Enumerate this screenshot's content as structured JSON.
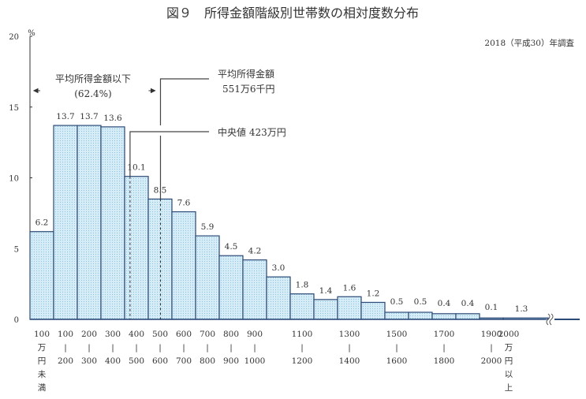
{
  "chart_data": {
    "type": "bar",
    "title": "図９　所得金額階級別世帯数の相対度数分布",
    "subtitle": "2018（平成30）年調査",
    "ylabel": "%",
    "ylim": [
      0,
      20
    ],
    "yticks": [
      0,
      5,
      10,
      15,
      20
    ],
    "grid": false,
    "colors": {
      "bar_fill": "#d6edf8",
      "bar_stroke": "#2c4a78",
      "dots": "#8fc3dd",
      "text": "#333333"
    },
    "categories": [
      "100万円未満",
      "100-200",
      "200-300",
      "300-400",
      "400-500",
      "500-600",
      "600-700",
      "700-800",
      "800-900",
      "900-1000",
      "1000-1100",
      "1100-1200",
      "1200-1300",
      "1300-1400",
      "1400-1500",
      "1500-1600",
      "1600-1700",
      "1700-1800",
      "1800-1900",
      "1900-2000",
      "2000万円以上"
    ],
    "values": [
      6.2,
      13.7,
      13.7,
      13.6,
      10.1,
      8.5,
      7.6,
      5.9,
      4.5,
      4.2,
      3.0,
      1.8,
      1.4,
      1.6,
      1.2,
      0.5,
      0.5,
      0.4,
      0.4,
      0.1,
      1.3
    ],
    "value_labels": [
      "6.2",
      "13.7",
      "13.7",
      "13.6",
      "10.1",
      "8.5",
      "7.6",
      "5.9",
      "4.5",
      "4.2",
      "3.0",
      "1.8",
      "1.4",
      "1.6",
      "1.2",
      "0.5",
      "0.5",
      "0.4",
      "0.4",
      "0.1",
      "1.3"
    ],
    "xtick_labels": [
      {
        "bar": 0,
        "lines": [
          "100",
          "万",
          "円",
          "未",
          "満"
        ]
      },
      {
        "bar": 1,
        "lines": [
          "100",
          "|",
          "200"
        ]
      },
      {
        "bar": 2,
        "lines": [
          "200",
          "|",
          "300"
        ]
      },
      {
        "bar": 3,
        "lines": [
          "300",
          "|",
          "400"
        ]
      },
      {
        "bar": 4,
        "lines": [
          "400",
          "|",
          "500"
        ]
      },
      {
        "bar": 5,
        "lines": [
          "500",
          "|",
          "600"
        ]
      },
      {
        "bar": 6,
        "lines": [
          "600",
          "|",
          "700"
        ]
      },
      {
        "bar": 7,
        "lines": [
          "700",
          "|",
          "800"
        ]
      },
      {
        "bar": 8,
        "lines": [
          "800",
          "|",
          "900"
        ]
      },
      {
        "bar": 9,
        "lines": [
          "900",
          "|",
          "1000"
        ]
      },
      {
        "bar": 11,
        "lines": [
          "1100",
          "|",
          "1200"
        ]
      },
      {
        "bar": 13,
        "lines": [
          "1300",
          "|",
          "1400"
        ]
      },
      {
        "bar": 15,
        "lines": [
          "1500",
          "|",
          "1600"
        ]
      },
      {
        "bar": 17,
        "lines": [
          "1700",
          "|",
          "1800"
        ]
      },
      {
        "bar": 19,
        "lines": [
          "1900",
          "|",
          "2000"
        ]
      },
      {
        "bar": 20,
        "lines": [
          "2000",
          "万",
          "円",
          "以",
          "上"
        ]
      }
    ],
    "annotations": {
      "below_mean_label": "平均所得金額以下",
      "below_mean_share": "(62.4%)",
      "mean_label": "平均所得金額",
      "mean_value_label": "551万6千円",
      "mean_value": 551.6,
      "median_label": "中央値 423万円",
      "median_value": 423
    }
  }
}
